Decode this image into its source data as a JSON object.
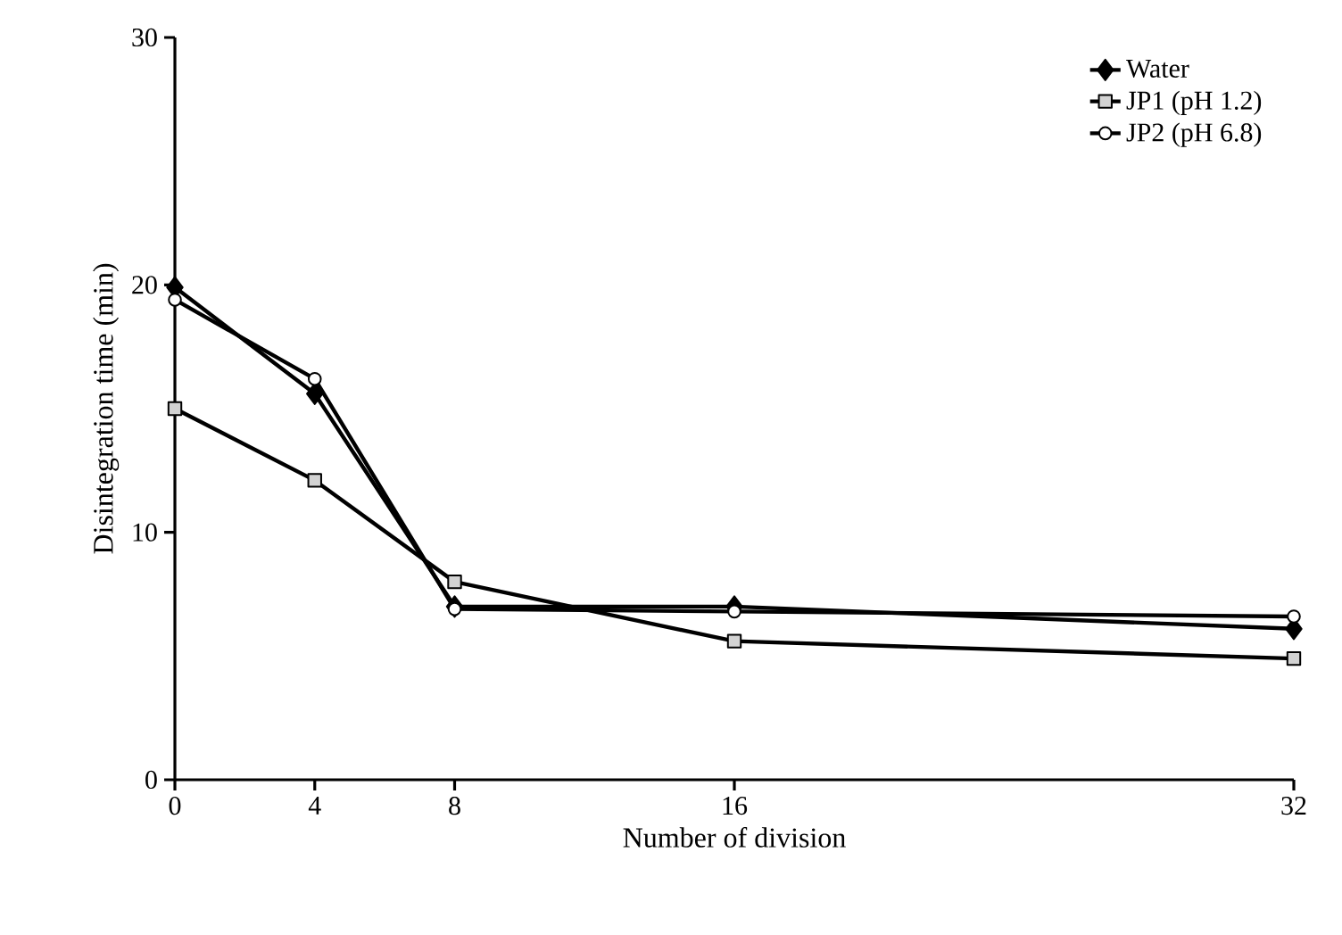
{
  "chart_data": {
    "type": "line",
    "xlabel": "Number of division",
    "ylabel": "Disintegration time (min)",
    "x": [
      0,
      4,
      8,
      16,
      32
    ],
    "xlim": [
      0,
      32
    ],
    "xticks": [
      0,
      4,
      8,
      16,
      32
    ],
    "ylim": [
      0,
      30
    ],
    "yticks": [
      0,
      10,
      20,
      30
    ],
    "legend": "top right",
    "grid": false,
    "series": [
      {
        "name": "Water",
        "color": "#000000",
        "marker": "diamond",
        "values": [
          19.9,
          15.6,
          7.0,
          7.0,
          6.1
        ]
      },
      {
        "name": "JP1 (pH 1.2)",
        "color": "#d3d3d3",
        "marker": "square",
        "values": [
          15.0,
          12.1,
          8.0,
          5.6,
          4.9
        ]
      },
      {
        "name": "JP2 (pH 6.8)",
        "color": "#ffffff",
        "marker": "circle",
        "values": [
          19.4,
          16.2,
          6.9,
          6.8,
          6.6
        ]
      }
    ]
  }
}
